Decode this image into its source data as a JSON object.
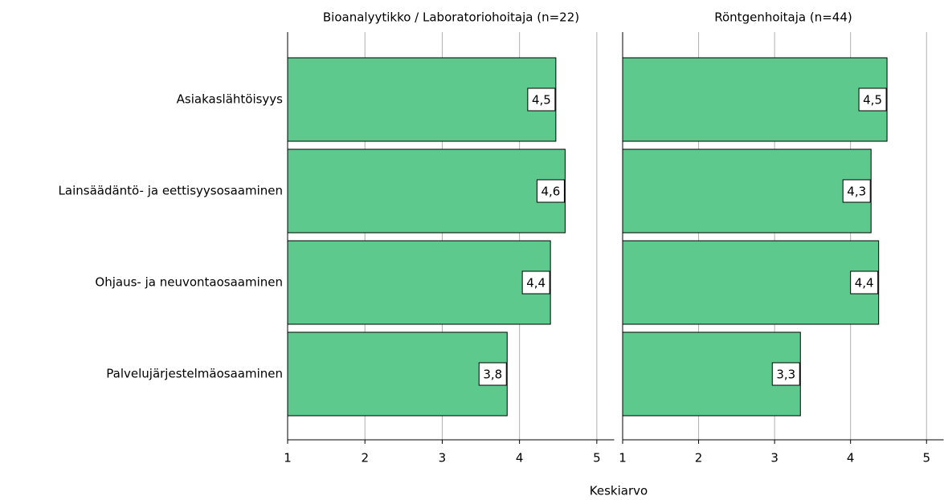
{
  "chart_data": {
    "type": "bar",
    "orientation": "horizontal",
    "facet": true,
    "categories": [
      "Asiakaslähtöisyys",
      "Lainsäädäntö- ja eettisyysosaaminen",
      "Ohjaus- ja neuvontaosaaminen",
      "Palvelujärjestelmäosaaminen"
    ],
    "x_label": "Keskiarvo",
    "xlim": [
      1,
      5.23
    ],
    "xticks": [
      1,
      2,
      3,
      4,
      5
    ],
    "grid": true,
    "color": "#5ec98c",
    "series": [
      {
        "name": "Bioanalyytikko / Laboratoriohoitaja (n=22)",
        "values": [
          4.47,
          4.59,
          4.4,
          3.84
        ],
        "value_labels": [
          "4,5",
          "4,6",
          "4,4",
          "3,8"
        ]
      },
      {
        "name": "Röntgenhoitaja (n=44)",
        "values": [
          4.48,
          4.27,
          4.37,
          3.34
        ],
        "value_labels": [
          "4,5",
          "4,3",
          "4,4",
          "3,3"
        ]
      }
    ]
  }
}
